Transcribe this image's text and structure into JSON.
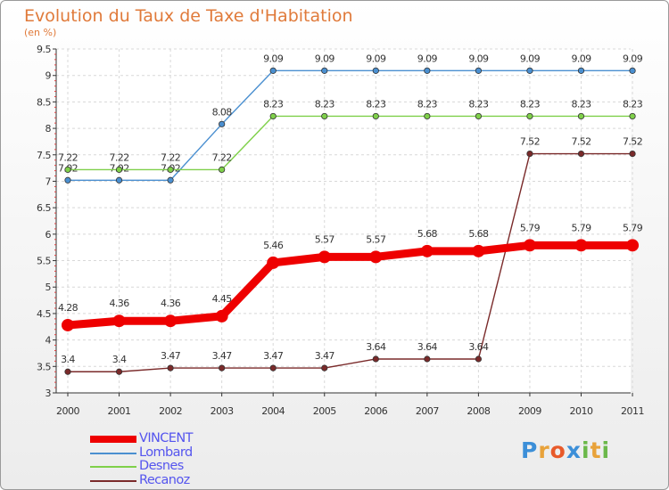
{
  "title": "Evolution du Taux de Taxe d'Habitation",
  "unit": "(en %)",
  "logo": {
    "text": "Proxiti",
    "letter_colors": [
      "#3c8fd8",
      "#e8a23a",
      "#e85a2a",
      "#3c8fd8",
      "#6bb84a",
      "#e8a23a",
      "#6bb84a"
    ]
  },
  "chart_data": {
    "type": "line",
    "categories": [
      "2000",
      "2001",
      "2002",
      "2003",
      "2004",
      "2005",
      "2006",
      "2007",
      "2008",
      "2009",
      "2010",
      "2011"
    ],
    "ylim": [
      3,
      9.5
    ],
    "yticks": [
      "3",
      "3.5",
      "4",
      "4.5",
      "5",
      "5.5",
      "6",
      "6.5",
      "7",
      "7.5",
      "8",
      "8.5",
      "9",
      "9.5"
    ],
    "grid": true,
    "legend_position": "bottom-left",
    "series": [
      {
        "name": "Lombard",
        "color": "#4a8fd0",
        "values": [
          7.02,
          7.02,
          7.02,
          8.08,
          9.09,
          9.09,
          9.09,
          9.09,
          9.09,
          9.09,
          9.09,
          9.09
        ],
        "labels": [
          "7.02",
          "7.02",
          "7.02",
          "8.08",
          "9.09",
          "9.09",
          "9.09",
          "9.09",
          "9.09",
          "9.09",
          "9.09",
          "9.09"
        ]
      },
      {
        "name": "Desnes",
        "color": "#7fd04a",
        "values": [
          7.22,
          7.22,
          7.22,
          7.22,
          8.23,
          8.23,
          8.23,
          8.23,
          8.23,
          8.23,
          8.23,
          8.23
        ],
        "labels": [
          "7.22",
          "7.22",
          "7.22",
          "7.22",
          "8.23",
          "8.23",
          "8.23",
          "8.23",
          "8.23",
          "8.23",
          "8.23",
          "8.23"
        ]
      },
      {
        "name": "Recanoz",
        "color": "#7a2a2a",
        "values": [
          3.4,
          3.4,
          3.47,
          3.47,
          3.47,
          3.47,
          3.64,
          3.64,
          3.64,
          7.52,
          7.52,
          7.52
        ],
        "labels": [
          "3.4",
          "3.4",
          "3.47",
          "3.47",
          "3.47",
          "3.47",
          "3.64",
          "3.64",
          "3.64",
          "7.52",
          "7.52",
          "7.52"
        ]
      },
      {
        "name": "VINCENT",
        "color": "#ee0000",
        "values": [
          4.28,
          4.36,
          4.36,
          4.45,
          5.46,
          5.57,
          5.57,
          5.68,
          5.68,
          5.79,
          5.79,
          5.79
        ],
        "labels": [
          "4.28",
          "4.36",
          "4.36",
          "4.45",
          "5.46",
          "5.57",
          "5.57",
          "5.68",
          "5.68",
          "5.79",
          "5.79",
          "5.79"
        ]
      }
    ],
    "legend": [
      "VINCENT",
      "Lombard",
      "Desnes",
      "Recanoz"
    ]
  }
}
